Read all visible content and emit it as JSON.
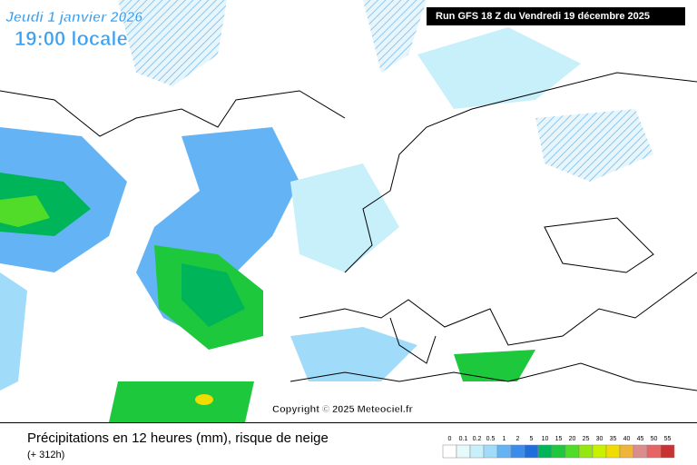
{
  "header": {
    "date": "Jeudi 1 janvier 2026",
    "time": "19:00 locale",
    "run": "Run GFS 18 Z du Vendredi 19 décembre 2025"
  },
  "copyright": "Copyright © 2025 Meteociel.fr",
  "footer": {
    "title": "Précipitations en 12 heures (mm), risque de neige",
    "lead": "(+ 312h)"
  },
  "legend": {
    "labels": [
      0,
      0.1,
      0.2,
      0.5,
      1,
      2,
      5,
      10,
      15,
      20,
      25,
      30,
      35,
      40,
      45,
      50,
      55
    ],
    "colors": [
      "#ffffff",
      "#e6fafa",
      "#c8f0fa",
      "#a0dcfa",
      "#64b4f5",
      "#3c8ceb",
      "#1e6edc",
      "#00b45a",
      "#1ec83c",
      "#50dc28",
      "#96e614",
      "#c8f000",
      "#f0dc00",
      "#f0b43c",
      "#dc8c8c",
      "#e66464",
      "#c83232"
    ]
  }
}
